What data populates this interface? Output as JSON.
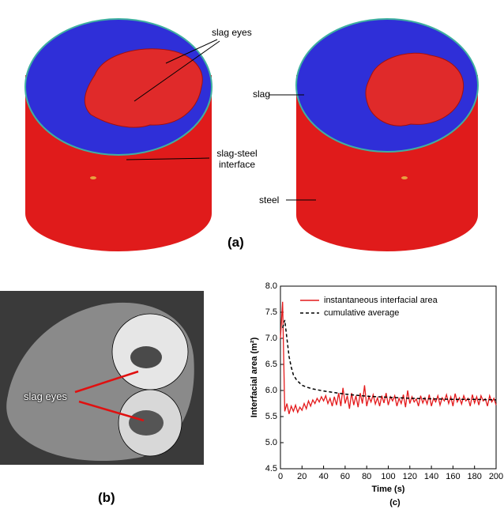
{
  "panel_a": {
    "label": "(a)",
    "annotations": [
      "slag eyes",
      "slag-steel interface",
      "slag",
      "steel"
    ]
  },
  "panel_b": {
    "label": "(b)",
    "annotation": "slag eyes"
  },
  "chart_data": {
    "type": "line",
    "label": "(c)",
    "x_label": "Time (s)",
    "y_label": "Interfacial area (m²)",
    "xlim": [
      0,
      200
    ],
    "xticks": [
      0,
      20,
      40,
      60,
      80,
      100,
      120,
      140,
      160,
      180,
      200
    ],
    "ylim": [
      4.5,
      8.0
    ],
    "yticks": [
      4.5,
      {
        "value": 5,
        "label": "5.0"
      },
      5.5,
      {
        "value": 6,
        "label": "6.0"
      },
      6.5,
      {
        "value": 7,
        "label": "7.0"
      },
      7.5,
      {
        "value": 8,
        "label": "8.0"
      }
    ],
    "legend": "top-right",
    "series": [
      {
        "name": "instantaneous interfacial area",
        "color": "#e41a1c",
        "style": "solid",
        "x": [
          0,
          2,
          4,
          6,
          8,
          10,
          12,
          14,
          16,
          18,
          20,
          22,
          24,
          26,
          28,
          30,
          32,
          34,
          36,
          38,
          40,
          42,
          44,
          46,
          48,
          50,
          52,
          54,
          56,
          58,
          60,
          62,
          64,
          66,
          68,
          70,
          72,
          74,
          76,
          78,
          80,
          82,
          84,
          86,
          88,
          90,
          92,
          94,
          96,
          98,
          100,
          102,
          104,
          106,
          108,
          110,
          112,
          114,
          116,
          118,
          120,
          122,
          124,
          126,
          128,
          130,
          132,
          134,
          136,
          138,
          140,
          142,
          144,
          146,
          148,
          150,
          152,
          154,
          156,
          158,
          160,
          162,
          164,
          166,
          168,
          170,
          172,
          174,
          176,
          178,
          180,
          182,
          184,
          186,
          188,
          190,
          192,
          194,
          196,
          198,
          200
        ],
        "values": [
          7.0,
          7.7,
          5.6,
          5.75,
          5.55,
          5.7,
          5.6,
          5.72,
          5.58,
          5.68,
          5.62,
          5.75,
          5.65,
          5.8,
          5.7,
          5.82,
          5.75,
          5.85,
          5.78,
          5.88,
          5.8,
          5.9,
          5.75,
          5.85,
          5.7,
          5.88,
          5.72,
          5.95,
          5.7,
          6.05,
          5.75,
          5.9,
          5.65,
          5.95,
          5.72,
          5.9,
          5.68,
          5.95,
          5.75,
          6.1,
          5.7,
          5.88,
          5.78,
          5.92,
          5.74,
          5.86,
          5.7,
          5.9,
          5.76,
          5.95,
          5.72,
          5.88,
          5.8,
          5.9,
          5.7,
          5.85,
          5.75,
          5.92,
          5.68,
          6.0,
          5.75,
          5.88,
          5.78,
          5.84,
          5.7,
          5.9,
          5.76,
          5.86,
          5.74,
          5.92,
          5.7,
          5.85,
          5.78,
          5.9,
          5.72,
          5.86,
          5.8,
          5.92,
          5.75,
          5.88,
          5.7,
          5.94,
          5.78,
          5.86,
          5.74,
          5.9,
          5.8,
          5.85,
          5.7,
          5.92,
          5.76,
          5.88,
          5.72,
          5.9,
          5.8,
          5.84,
          5.7,
          5.9,
          5.78,
          5.85,
          5.72
        ]
      },
      {
        "name": "cumulative average",
        "color": "#000000",
        "style": "dashed",
        "x": [
          2,
          4,
          6,
          8,
          10,
          12,
          15,
          20,
          25,
          30,
          40,
          50,
          60,
          70,
          80,
          100,
          120,
          140,
          160,
          180,
          200
        ],
        "values": [
          7.2,
          7.35,
          7.0,
          6.65,
          6.45,
          6.3,
          6.2,
          6.1,
          6.06,
          6.03,
          5.99,
          5.96,
          5.93,
          5.91,
          5.89,
          5.87,
          5.85,
          5.84,
          5.83,
          5.83,
          5.82
        ]
      }
    ]
  }
}
